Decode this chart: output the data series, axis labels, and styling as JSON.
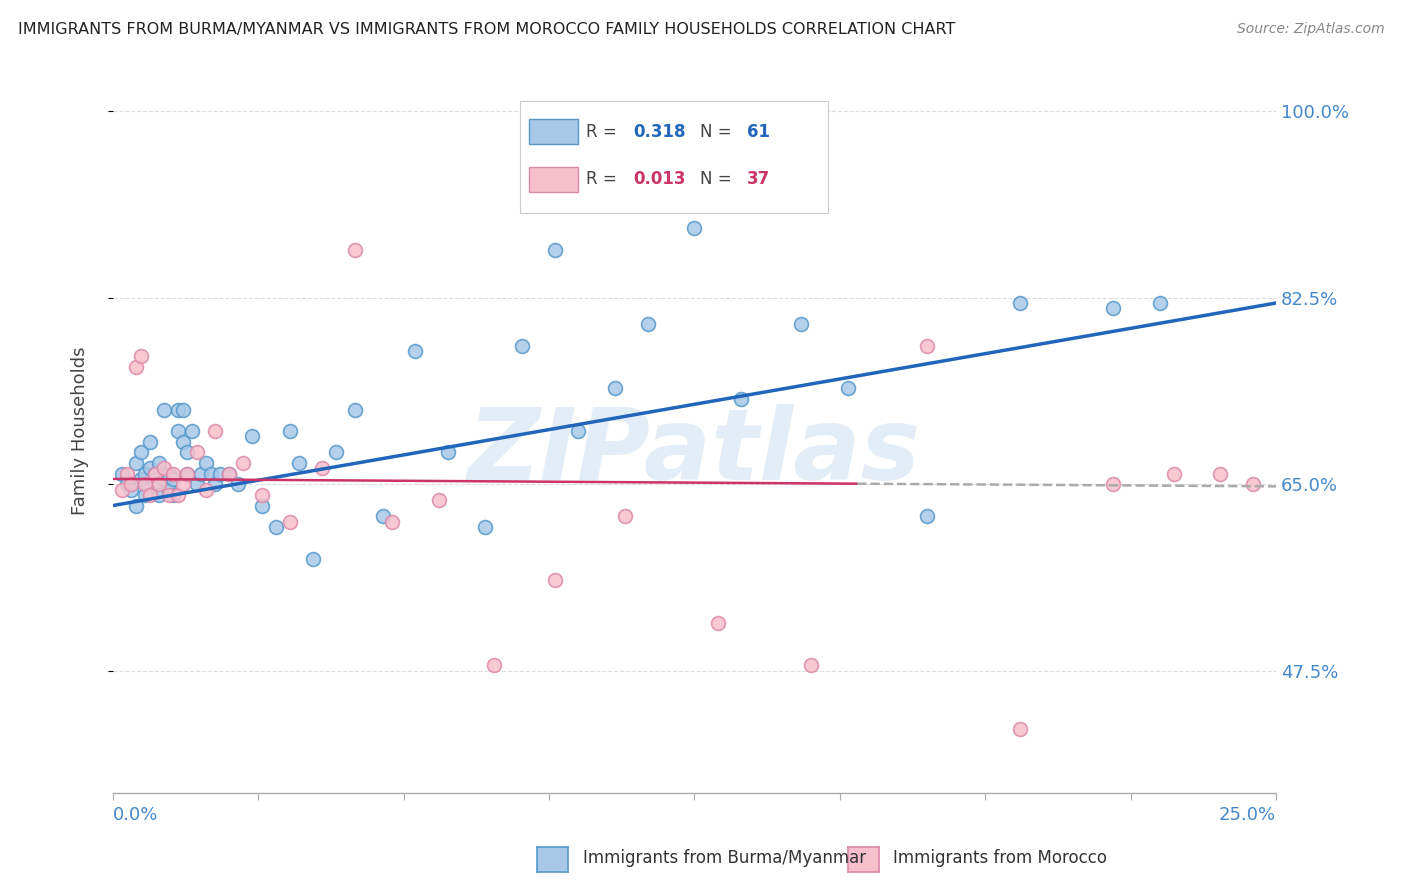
{
  "title": "IMMIGRANTS FROM BURMA/MYANMAR VS IMMIGRANTS FROM MOROCCO FAMILY HOUSEHOLDS CORRELATION CHART",
  "source": "Source: ZipAtlas.com",
  "ylabel": "Family Households",
  "xlim": [
    0.0,
    0.25
  ],
  "ylim": [
    0.36,
    1.04
  ],
  "ytick_vals": [
    0.475,
    0.65,
    0.825,
    1.0
  ],
  "ytick_labels": [
    "47.5%",
    "65.0%",
    "82.5%",
    "100.0%"
  ],
  "blue_color": "#a8c8e8",
  "blue_edge_color": "#5599cc",
  "blue_line_color": "#2266bb",
  "pink_color": "#f8c0cc",
  "pink_edge_color": "#dd88aa",
  "pink_line_color": "#aaaaaa",
  "axis_label_color": "#4488cc",
  "title_color": "#222222",
  "source_color": "#888888",
  "watermark_text": "ZIPatlas",
  "watermark_color": "#c8ddf0",
  "legend_R_blue": "0.318",
  "legend_N_blue": "61",
  "legend_R_pink": "0.013",
  "legend_N_pink": "37",
  "blue_scatter_x": [
    0.002,
    0.003,
    0.004,
    0.005,
    0.005,
    0.006,
    0.006,
    0.007,
    0.007,
    0.008,
    0.008,
    0.009,
    0.009,
    0.01,
    0.01,
    0.011,
    0.011,
    0.012,
    0.012,
    0.013,
    0.013,
    0.014,
    0.014,
    0.015,
    0.015,
    0.016,
    0.016,
    0.017,
    0.018,
    0.019,
    0.02,
    0.021,
    0.022,
    0.023,
    0.025,
    0.027,
    0.03,
    0.032,
    0.035,
    0.038,
    0.04,
    0.043,
    0.048,
    0.052,
    0.058,
    0.065,
    0.072,
    0.08,
    0.088,
    0.095,
    0.1,
    0.108,
    0.115,
    0.125,
    0.135,
    0.148,
    0.158,
    0.175,
    0.195,
    0.215,
    0.225
  ],
  "blue_scatter_y": [
    0.66,
    0.65,
    0.645,
    0.67,
    0.63,
    0.655,
    0.68,
    0.66,
    0.64,
    0.665,
    0.69,
    0.65,
    0.66,
    0.64,
    0.67,
    0.655,
    0.72,
    0.66,
    0.645,
    0.655,
    0.64,
    0.72,
    0.7,
    0.69,
    0.72,
    0.66,
    0.68,
    0.7,
    0.65,
    0.66,
    0.67,
    0.66,
    0.65,
    0.66,
    0.66,
    0.65,
    0.695,
    0.63,
    0.61,
    0.7,
    0.67,
    0.58,
    0.68,
    0.72,
    0.62,
    0.775,
    0.68,
    0.61,
    0.78,
    0.87,
    0.7,
    0.74,
    0.8,
    0.89,
    0.73,
    0.8,
    0.74,
    0.62,
    0.82,
    0.815,
    0.82
  ],
  "pink_scatter_x": [
    0.002,
    0.003,
    0.004,
    0.005,
    0.006,
    0.007,
    0.008,
    0.009,
    0.01,
    0.011,
    0.012,
    0.013,
    0.014,
    0.015,
    0.016,
    0.018,
    0.02,
    0.022,
    0.025,
    0.028,
    0.032,
    0.038,
    0.045,
    0.052,
    0.06,
    0.07,
    0.082,
    0.095,
    0.11,
    0.13,
    0.15,
    0.175,
    0.195,
    0.215,
    0.228,
    0.238,
    0.245
  ],
  "pink_scatter_y": [
    0.645,
    0.66,
    0.65,
    0.76,
    0.77,
    0.65,
    0.64,
    0.66,
    0.65,
    0.665,
    0.64,
    0.66,
    0.64,
    0.65,
    0.66,
    0.68,
    0.645,
    0.7,
    0.66,
    0.67,
    0.64,
    0.615,
    0.665,
    0.87,
    0.615,
    0.635,
    0.48,
    0.56,
    0.62,
    0.52,
    0.48,
    0.78,
    0.42,
    0.65,
    0.66,
    0.66,
    0.65
  ]
}
